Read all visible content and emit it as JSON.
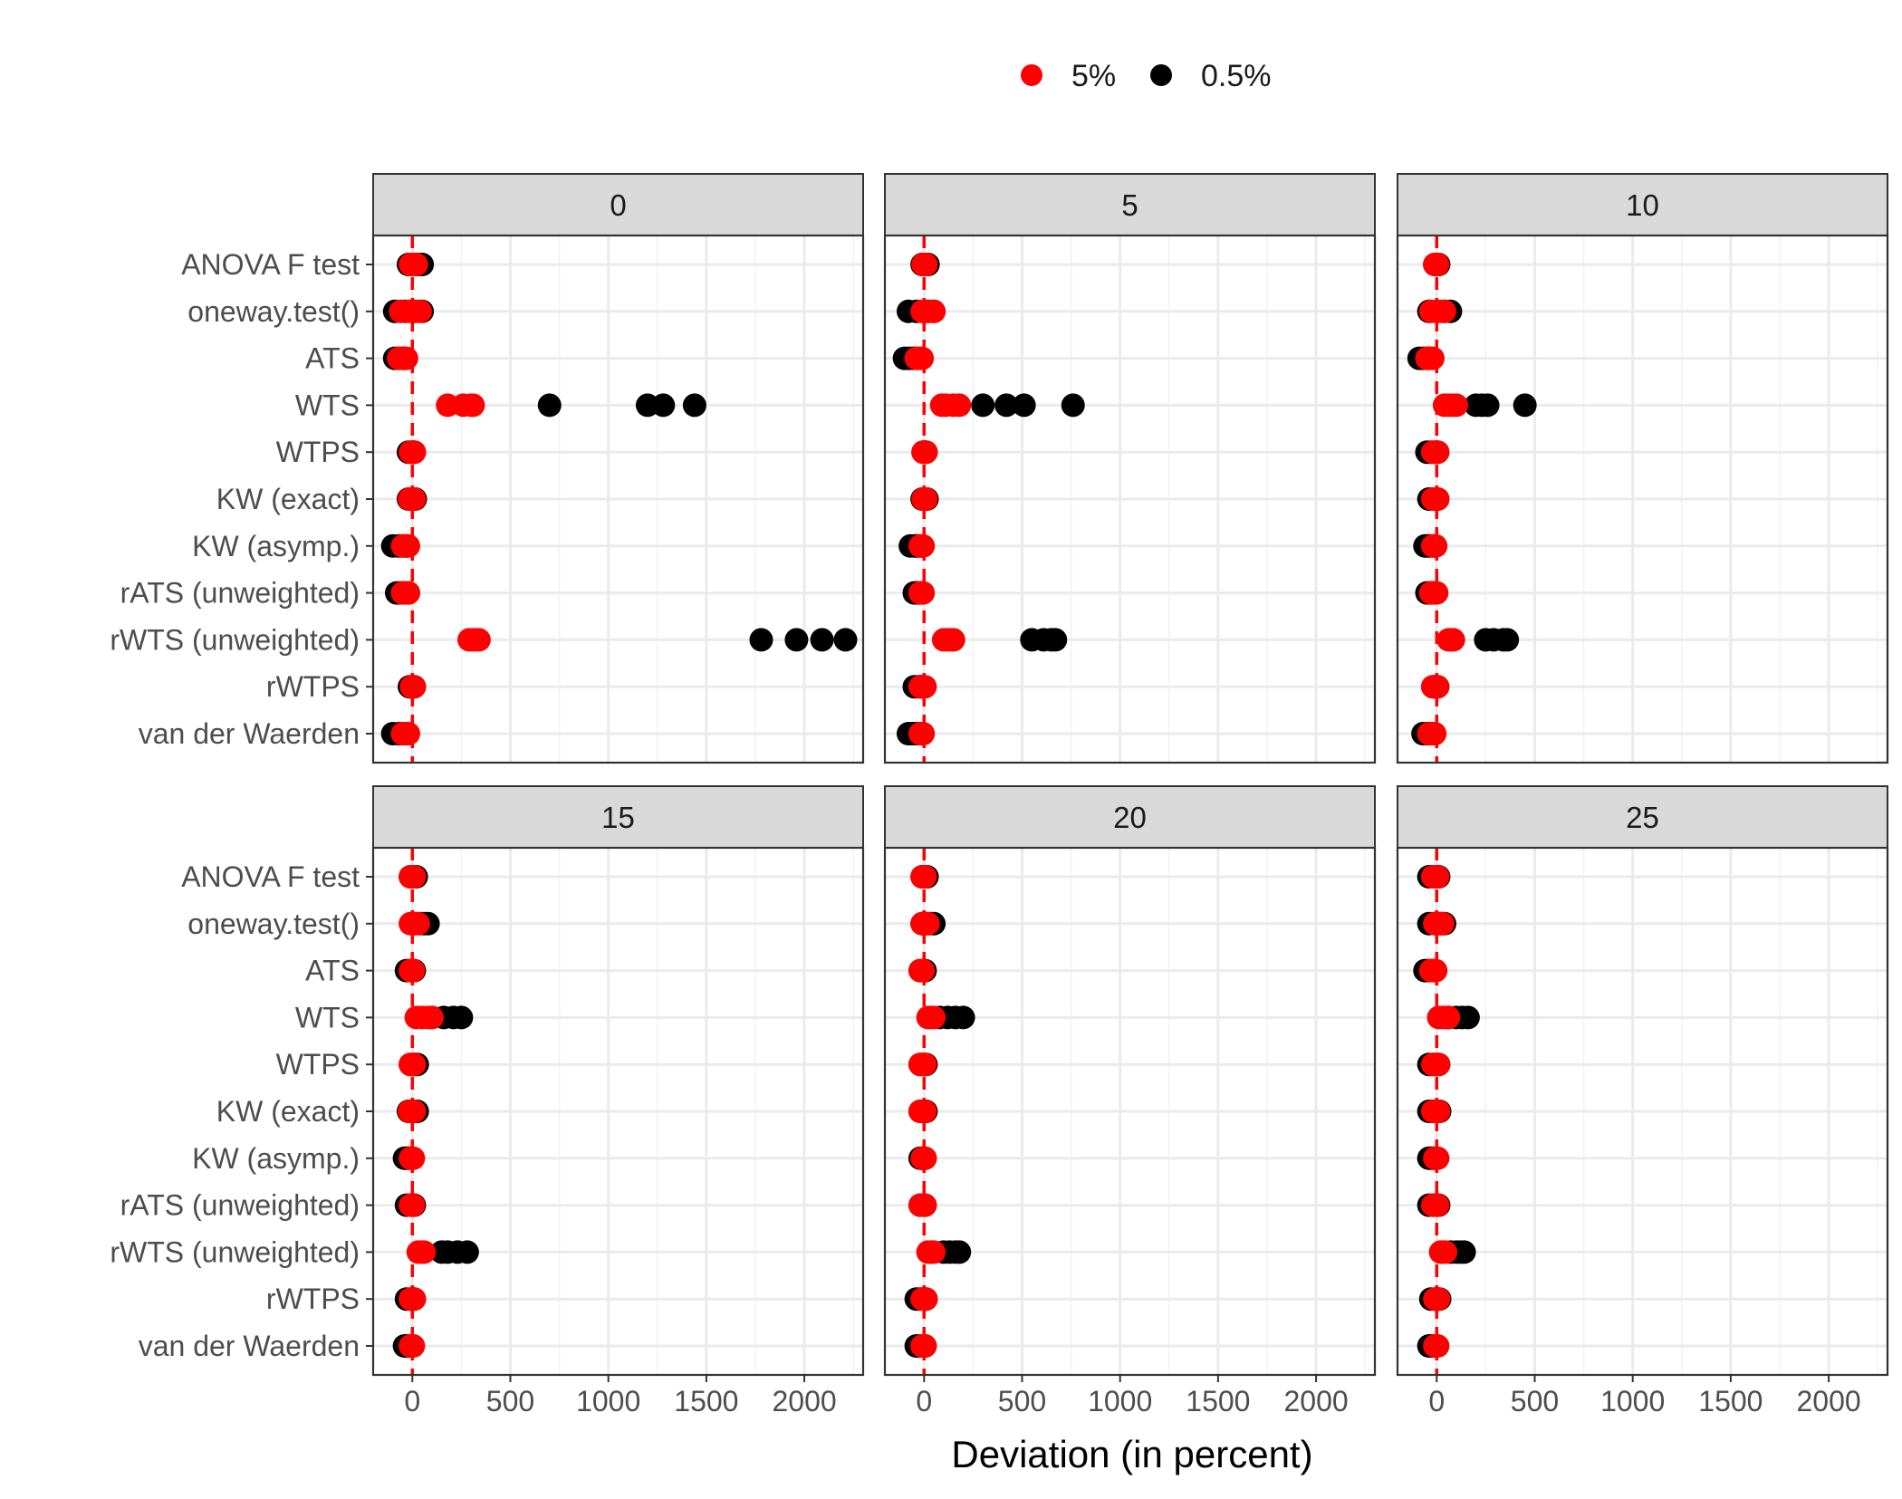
{
  "chart_data": {
    "type": "scatter",
    "title": "",
    "xlabel": "Deviation (in percent)",
    "ylabel": "",
    "xlim": [
      -200,
      2300
    ],
    "x_ticks": [
      0,
      500,
      1000,
      1500,
      2000
    ],
    "x_tick_labels": [
      "0",
      "500",
      "1000",
      "1500",
      "2000"
    ],
    "reference_line": 0,
    "grid": true,
    "legend": {
      "position": "top",
      "entries": [
        {
          "label": "5%",
          "color": "#ff0000"
        },
        {
          "label": "0.5%",
          "color": "#000000"
        }
      ]
    },
    "categories": [
      "ANOVA F test",
      "oneway.test()",
      "ATS",
      "WTS",
      "WTPS",
      "KW (exact)",
      "KW (asymp.)",
      "rATS (unweighted)",
      "rWTS (unweighted)",
      "rWTPS",
      "van der Waerden"
    ],
    "panels": [
      {
        "label": "0",
        "series": [
          {
            "name": "0.5%",
            "points": {
              "ANOVA F test": [
                -20,
                10,
                30,
                50
              ],
              "oneway.test()": [
                -90,
                -40,
                10,
                50
              ],
              "ATS": [
                -90,
                -70,
                -50,
                -40
              ],
              "WTS": [
                700,
                1200,
                1280,
                1440
              ],
              "WTPS": [
                -20,
                -5,
                5,
                10
              ],
              "KW (exact)": [
                -20,
                0,
                10,
                15
              ],
              "KW (asymp.)": [
                -100,
                -70,
                -50,
                -30
              ],
              "rATS (unweighted)": [
                -80,
                -60,
                -40,
                -20
              ],
              "rWTS (unweighted)": [
                1780,
                1960,
                2090,
                2210
              ],
              "rWTPS": [
                -15,
                -5,
                5,
                10
              ],
              "van der Waerden": [
                -100,
                -70,
                -50,
                -30
              ]
            }
          },
          {
            "name": "5%",
            "points": {
              "ANOVA F test": [
                -10,
                0,
                10,
                20
              ],
              "oneway.test()": [
                -60,
                -20,
                20,
                40
              ],
              "ATS": [
                -70,
                -50,
                -40,
                -30
              ],
              "WTS": [
                180,
                260,
                300,
                310
              ],
              "WTPS": [
                -10,
                0,
                5,
                10
              ],
              "KW (exact)": [
                -15,
                0,
                5,
                10
              ],
              "KW (asymp.)": [
                -50,
                -40,
                -30,
                -20
              ],
              "rATS (unweighted)": [
                -50,
                -40,
                -30,
                -20
              ],
              "rWTS (unweighted)": [
                290,
                310,
                330,
                340
              ],
              "rWTPS": [
                -5,
                0,
                5,
                10
              ],
              "van der Waerden": [
                -50,
                -40,
                -30,
                -20
              ]
            }
          }
        ]
      },
      {
        "label": "5",
        "series": [
          {
            "name": "0.5%",
            "points": {
              "ANOVA F test": [
                -10,
                5,
                15,
                20
              ],
              "oneway.test()": [
                -80,
                -40,
                20,
                50
              ],
              "ATS": [
                -100,
                -80,
                -60,
                -50
              ],
              "WTS": [
                300,
                420,
                510,
                760
              ],
              "WTPS": [
                -5,
                0,
                5,
                10
              ],
              "KW (exact)": [
                -10,
                0,
                10,
                15
              ],
              "KW (asymp.)": [
                -70,
                -50,
                -40,
                -30
              ],
              "rATS (unweighted)": [
                -50,
                -40,
                -30,
                -20
              ],
              "rWTS (unweighted)": [
                550,
                610,
                650,
                670
              ],
              "rWTPS": [
                -50,
                -30,
                -20,
                -10
              ],
              "van der Waerden": [
                -80,
                -60,
                -40,
                -20
              ]
            }
          },
          {
            "name": "5%",
            "points": {
              "ANOVA F test": [
                -5,
                0,
                5,
                10
              ],
              "oneway.test()": [
                -10,
                10,
                30,
                50
              ],
              "ATS": [
                -40,
                -30,
                -20,
                -10
              ],
              "WTS": [
                90,
                110,
                150,
                180
              ],
              "WTPS": [
                -5,
                0,
                5,
                10
              ],
              "KW (exact)": [
                -5,
                0,
                5,
                10
              ],
              "KW (asymp.)": [
                -20,
                -15,
                -10,
                -5
              ],
              "rATS (unweighted)": [
                -20,
                -15,
                -10,
                -5
              ],
              "rWTS (unweighted)": [
                100,
                120,
                140,
                150
              ],
              "rWTPS": [
                -20,
                -10,
                0,
                5
              ],
              "van der Waerden": [
                -20,
                -15,
                -10,
                -5
              ]
            }
          }
        ]
      },
      {
        "label": "10",
        "series": [
          {
            "name": "0.5%",
            "points": {
              "ANOVA F test": [
                -10,
                0,
                5,
                10
              ],
              "oneway.test()": [
                -40,
                0,
                40,
                70
              ],
              "ATS": [
                -90,
                -70,
                -50,
                -40
              ],
              "WTS": [
                200,
                230,
                260,
                450
              ],
              "WTPS": [
                -50,
                -30,
                -10,
                5
              ],
              "KW (exact)": [
                -40,
                -20,
                -5,
                5
              ],
              "KW (asymp.)": [
                -60,
                -50,
                -40,
                -30
              ],
              "rATS (unweighted)": [
                -50,
                -40,
                -30,
                -20
              ],
              "rWTS (unweighted)": [
                250,
                290,
                340,
                360
              ],
              "rWTPS": [
                -20,
                -10,
                0,
                5
              ],
              "van der Waerden": [
                -70,
                -50,
                -40,
                -30
              ]
            }
          },
          {
            "name": "5%",
            "points": {
              "ANOVA F test": [
                -10,
                -5,
                0,
                5
              ],
              "oneway.test()": [
                -30,
                0,
                20,
                40
              ],
              "ATS": [
                -50,
                -40,
                -30,
                -20
              ],
              "WTS": [
                40,
                60,
                80,
                100
              ],
              "WTPS": [
                -20,
                -10,
                0,
                5
              ],
              "KW (exact)": [
                -20,
                -10,
                0,
                5
              ],
              "KW (asymp.)": [
                -20,
                -15,
                -10,
                -5
              ],
              "rATS (unweighted)": [
                -30,
                -20,
                -10,
                0
              ],
              "rWTS (unweighted)": [
                60,
                70,
                80,
                85
              ],
              "rWTPS": [
                -20,
                -10,
                0,
                5
              ],
              "van der Waerden": [
                -40,
                -30,
                -20,
                -10
              ]
            }
          }
        ]
      },
      {
        "label": "15",
        "series": [
          {
            "name": "0.5%",
            "points": {
              "ANOVA F test": [
                -10,
                5,
                15,
                20
              ],
              "oneway.test()": [
                10,
                40,
                60,
                80
              ],
              "ATS": [
                -30,
                -10,
                5,
                10
              ],
              "WTS": [
                100,
                160,
                210,
                250
              ],
              "WTPS": [
                -10,
                5,
                15,
                25
              ],
              "KW (exact)": [
                -20,
                0,
                15,
                25
              ],
              "KW (asymp.)": [
                -40,
                -30,
                -20,
                -10
              ],
              "rATS (unweighted)": [
                -30,
                -10,
                5,
                10
              ],
              "rWTS (unweighted)": [
                150,
                180,
                230,
                280
              ],
              "rWTPS": [
                -30,
                -10,
                5,
                10
              ],
              "van der Waerden": [
                -40,
                -30,
                -20,
                -10
              ]
            }
          },
          {
            "name": "5%",
            "points": {
              "ANOVA F test": [
                -10,
                0,
                5,
                10
              ],
              "oneway.test()": [
                -10,
                10,
                20,
                30
              ],
              "ATS": [
                -10,
                -5,
                0,
                5
              ],
              "WTS": [
                20,
                50,
                80,
                100
              ],
              "WTPS": [
                -10,
                0,
                5,
                10
              ],
              "KW (exact)": [
                -15,
                -5,
                5,
                10
              ],
              "KW (asymp.)": [
                -10,
                -5,
                0,
                5
              ],
              "rATS (unweighted)": [
                -10,
                -5,
                0,
                5
              ],
              "rWTS (unweighted)": [
                30,
                45,
                55,
                60
              ],
              "rWTPS": [
                -10,
                0,
                5,
                10
              ],
              "van der Waerden": [
                -10,
                -5,
                0,
                5
              ]
            }
          }
        ]
      },
      {
        "label": "20",
        "series": [
          {
            "name": "0.5%",
            "points": {
              "ANOVA F test": [
                -10,
                0,
                10,
                15
              ],
              "oneway.test()": [
                -10,
                10,
                30,
                50
              ],
              "ATS": [
                -20,
                -10,
                0,
                5
              ],
              "WTS": [
                80,
                120,
                160,
                200
              ],
              "WTPS": [
                -20,
                -5,
                5,
                10
              ],
              "KW (exact)": [
                -20,
                -5,
                5,
                10
              ],
              "KW (asymp.)": [
                -20,
                -10,
                0,
                5
              ],
              "rATS (unweighted)": [
                -20,
                -10,
                0,
                5
              ],
              "rWTS (unweighted)": [
                100,
                130,
                160,
                180
              ],
              "rWTPS": [
                -40,
                -20,
                0,
                10
              ],
              "van der Waerden": [
                -40,
                -20,
                0,
                5
              ]
            }
          },
          {
            "name": "5%",
            "points": {
              "ANOVA F test": [
                -10,
                -5,
                0,
                5
              ],
              "oneway.test()": [
                -10,
                0,
                10,
                20
              ],
              "ATS": [
                -20,
                -15,
                -10,
                -5
              ],
              "WTS": [
                20,
                30,
                40,
                50
              ],
              "WTPS": [
                -20,
                -10,
                0,
                5
              ],
              "KW (exact)": [
                -20,
                -10,
                0,
                5
              ],
              "KW (asymp.)": [
                -10,
                -5,
                0,
                5
              ],
              "rATS (unweighted)": [
                -20,
                -10,
                0,
                5
              ],
              "rWTS (unweighted)": [
                20,
                30,
                40,
                50
              ],
              "rWTPS": [
                -10,
                0,
                5,
                10
              ],
              "van der Waerden": [
                -10,
                -5,
                0,
                5
              ]
            }
          }
        ]
      },
      {
        "label": "25",
        "series": [
          {
            "name": "0.5%",
            "points": {
              "ANOVA F test": [
                -40,
                -20,
                0,
                10
              ],
              "oneway.test()": [
                -40,
                -10,
                20,
                40
              ],
              "ATS": [
                -60,
                -40,
                -20,
                -10
              ],
              "WTS": [
                60,
                100,
                130,
                160
              ],
              "WTPS": [
                -40,
                -20,
                0,
                10
              ],
              "KW (exact)": [
                -40,
                -20,
                0,
                15
              ],
              "KW (asymp.)": [
                -40,
                -30,
                -20,
                -10
              ],
              "rATS (unweighted)": [
                -40,
                -20,
                -5,
                10
              ],
              "rWTS (unweighted)": [
                70,
                100,
                120,
                140
              ],
              "rWTPS": [
                -30,
                -10,
                5,
                15
              ],
              "van der Waerden": [
                -40,
                -30,
                -20,
                -10
              ]
            }
          },
          {
            "name": "5%",
            "points": {
              "ANOVA F test": [
                -20,
                -10,
                0,
                5
              ],
              "oneway.test()": [
                -10,
                10,
                25,
                30
              ],
              "ATS": [
                -30,
                -20,
                -10,
                -5
              ],
              "WTS": [
                10,
                30,
                50,
                60
              ],
              "WTPS": [
                -20,
                -10,
                0,
                10
              ],
              "KW (exact)": [
                -20,
                -10,
                0,
                10
              ],
              "KW (asymp.)": [
                -10,
                -5,
                0,
                5
              ],
              "rATS (unweighted)": [
                -20,
                -10,
                0,
                5
              ],
              "rWTS (unweighted)": [
                20,
                30,
                40,
                45
              ],
              "rWTPS": [
                -10,
                0,
                5,
                10
              ],
              "van der Waerden": [
                -10,
                -5,
                0,
                5
              ]
            }
          }
        ]
      }
    ]
  }
}
